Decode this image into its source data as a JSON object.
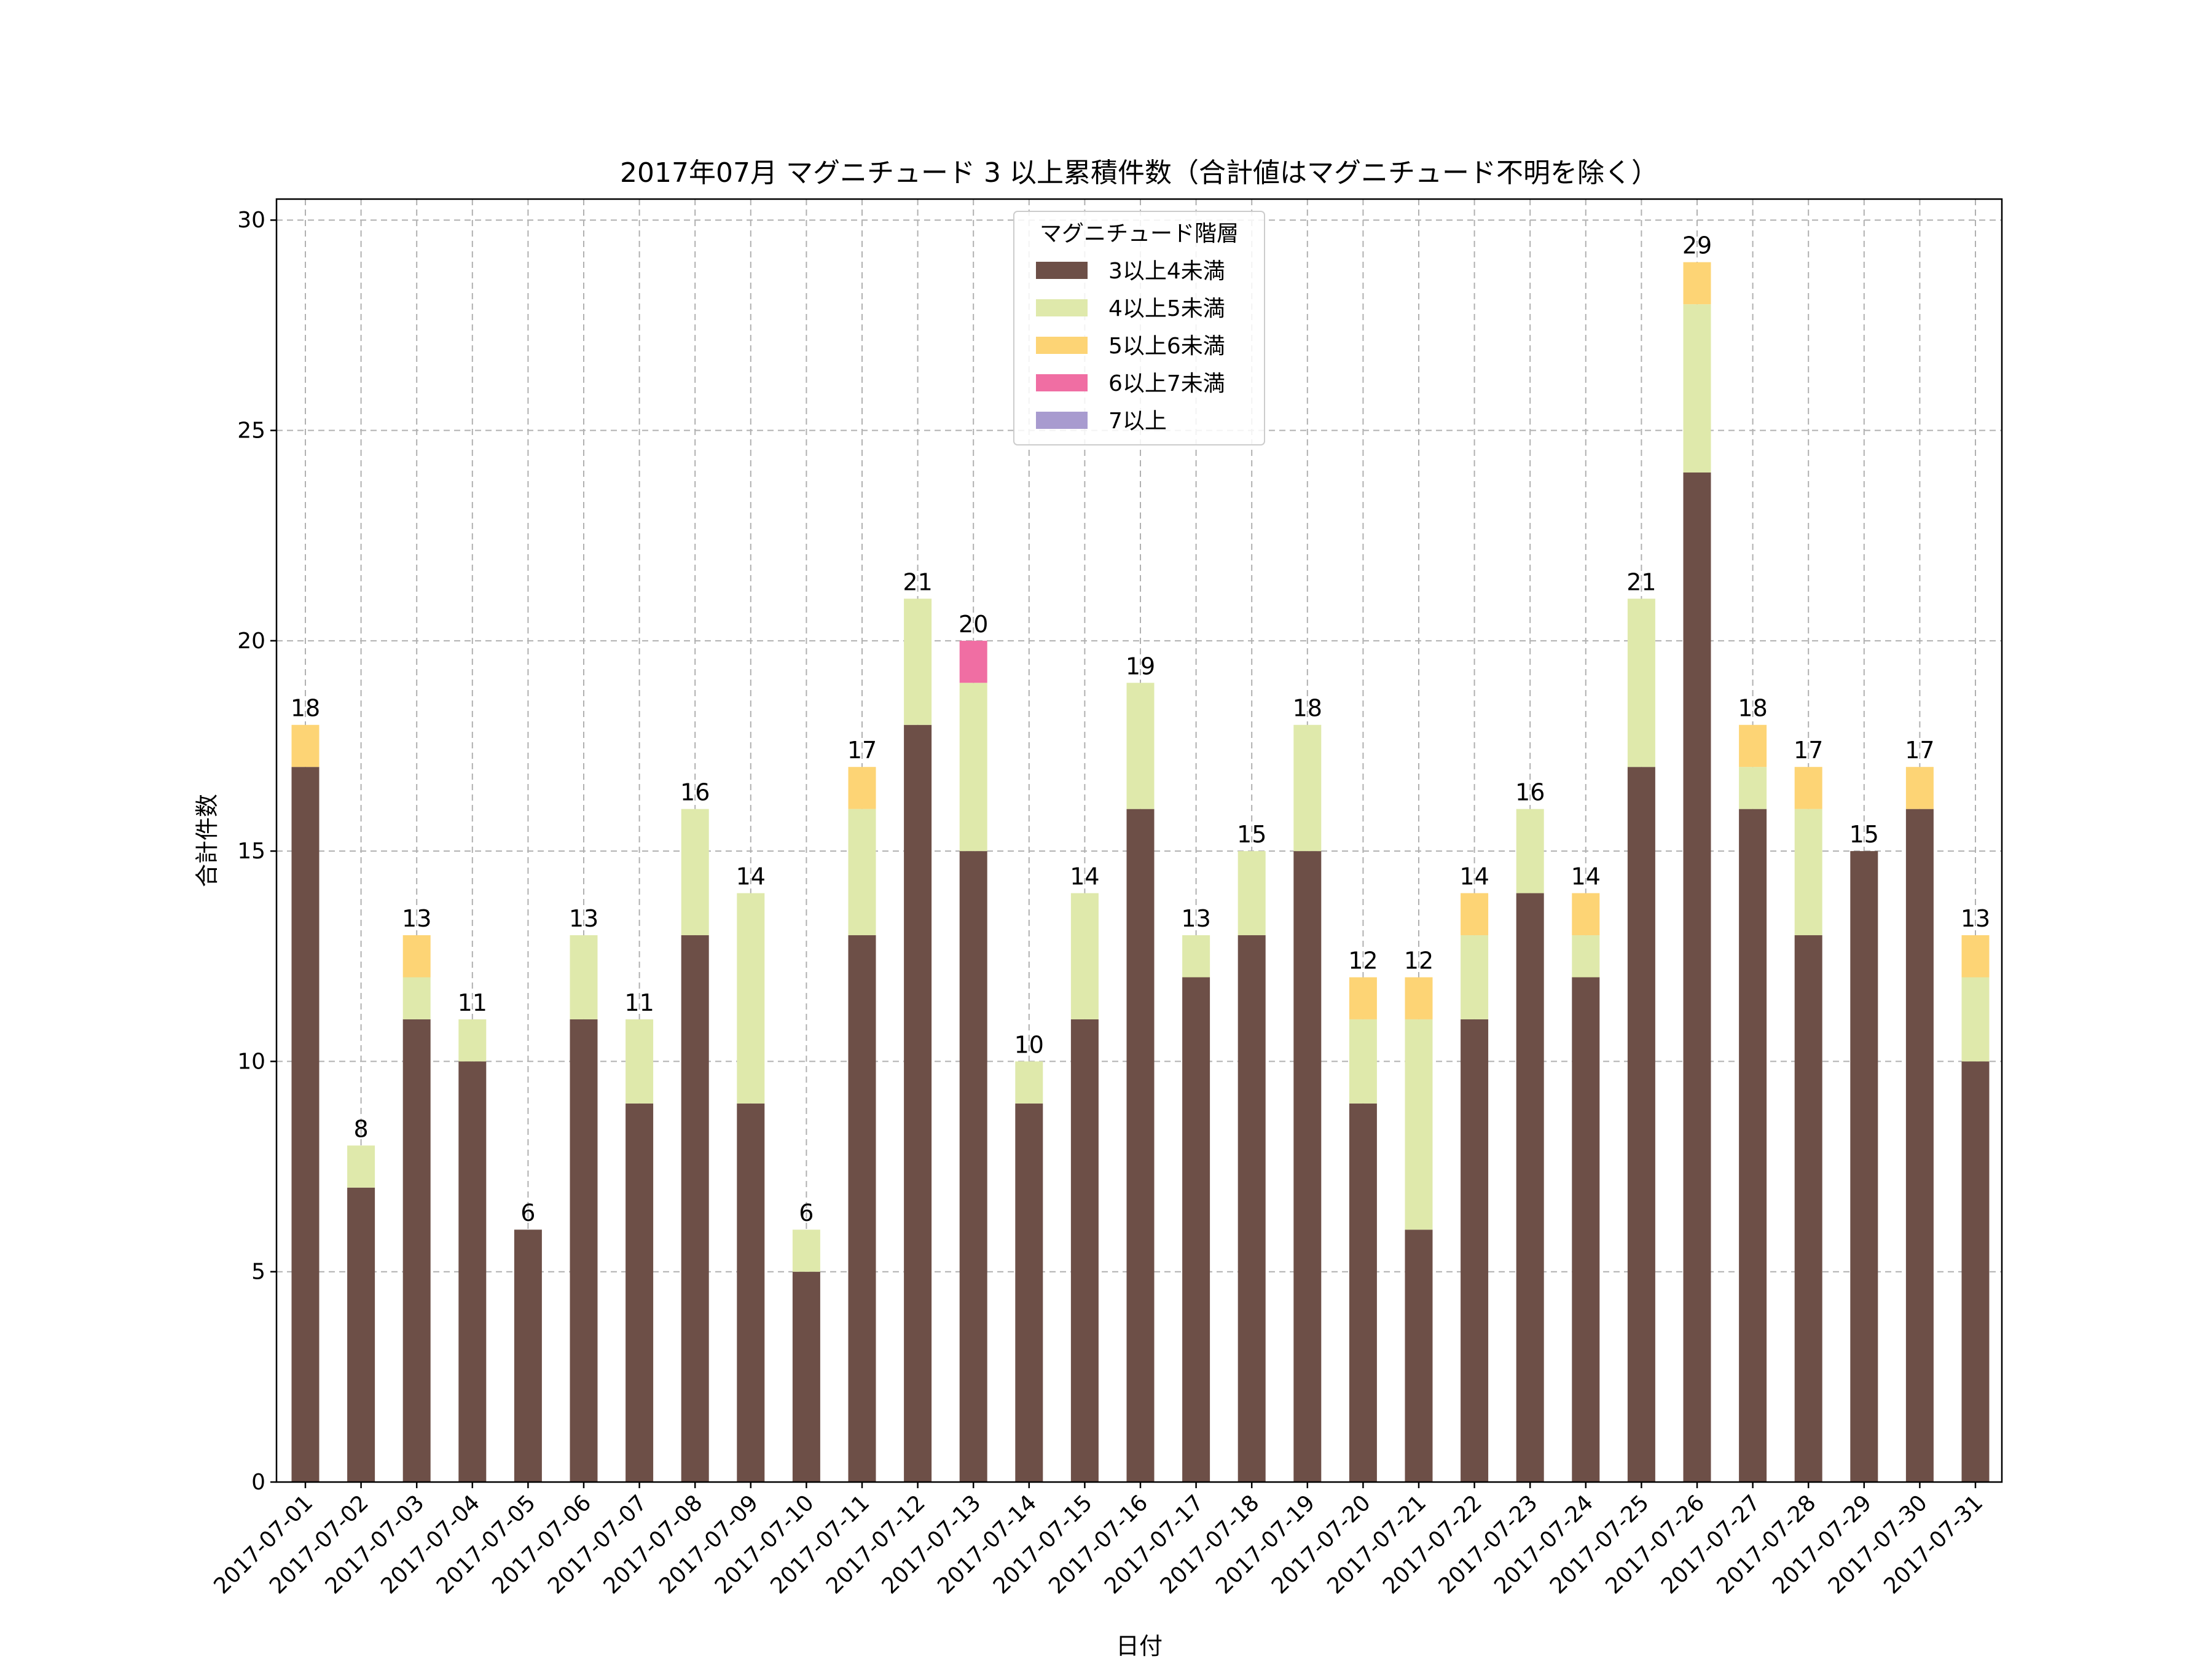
{
  "chart_data": {
    "type": "bar",
    "stacked": true,
    "title": "2017年07月 マグニチュード 3 以上累積件数（合計値はマグニチュード不明を除く）",
    "xlabel": "日付",
    "ylabel": "合計件数",
    "ylim": [
      0,
      30.5
    ],
    "yticks": [
      0,
      5,
      10,
      15,
      20,
      25,
      30
    ],
    "grid": true,
    "legend_title": "マグニチュード階層",
    "legend_position": "upper-center",
    "categories": [
      "2017-07-01",
      "2017-07-02",
      "2017-07-03",
      "2017-07-04",
      "2017-07-05",
      "2017-07-06",
      "2017-07-07",
      "2017-07-08",
      "2017-07-09",
      "2017-07-10",
      "2017-07-11",
      "2017-07-12",
      "2017-07-13",
      "2017-07-14",
      "2017-07-15",
      "2017-07-16",
      "2017-07-17",
      "2017-07-18",
      "2017-07-19",
      "2017-07-20",
      "2017-07-21",
      "2017-07-22",
      "2017-07-23",
      "2017-07-24",
      "2017-07-25",
      "2017-07-26",
      "2017-07-27",
      "2017-07-28",
      "2017-07-29",
      "2017-07-30",
      "2017-07-31"
    ],
    "series": [
      {
        "name": "3以上4未満",
        "color": "#6d4f47",
        "values": [
          17,
          7,
          11,
          10,
          6,
          11,
          9,
          13,
          9,
          5,
          13,
          18,
          15,
          9,
          11,
          16,
          12,
          13,
          15,
          9,
          6,
          11,
          14,
          12,
          17,
          24,
          16,
          13,
          15,
          16,
          10
        ]
      },
      {
        "name": "4以上5未満",
        "color": "#dfe9ab",
        "values": [
          0,
          1,
          1,
          1,
          0,
          2,
          2,
          3,
          5,
          1,
          3,
          3,
          4,
          1,
          3,
          3,
          1,
          2,
          3,
          2,
          5,
          2,
          2,
          1,
          4,
          4,
          1,
          3,
          0,
          0,
          2
        ]
      },
      {
        "name": "5以上6未満",
        "color": "#fdd475",
        "values": [
          1,
          0,
          1,
          0,
          0,
          0,
          0,
          0,
          0,
          0,
          1,
          0,
          0,
          0,
          0,
          0,
          0,
          0,
          0,
          1,
          1,
          1,
          0,
          1,
          0,
          1,
          1,
          1,
          0,
          1,
          1
        ]
      },
      {
        "name": "6以上7未満",
        "color": "#f06ea3",
        "values": [
          0,
          0,
          0,
          0,
          0,
          0,
          0,
          0,
          0,
          0,
          0,
          0,
          1,
          0,
          0,
          0,
          0,
          0,
          0,
          0,
          0,
          0,
          0,
          0,
          0,
          0,
          0,
          0,
          0,
          0,
          0
        ]
      },
      {
        "name": "7以上",
        "color": "#a89bcf",
        "values": [
          0,
          0,
          0,
          0,
          0,
          0,
          0,
          0,
          0,
          0,
          0,
          0,
          0,
          0,
          0,
          0,
          0,
          0,
          0,
          0,
          0,
          0,
          0,
          0,
          0,
          0,
          0,
          0,
          0,
          0,
          0
        ]
      }
    ],
    "totals": [
      18,
      8,
      13,
      11,
      6,
      13,
      11,
      16,
      14,
      6,
      17,
      21,
      20,
      10,
      14,
      19,
      13,
      15,
      18,
      12,
      12,
      14,
      16,
      14,
      21,
      29,
      18,
      17,
      15,
      17,
      13
    ]
  }
}
